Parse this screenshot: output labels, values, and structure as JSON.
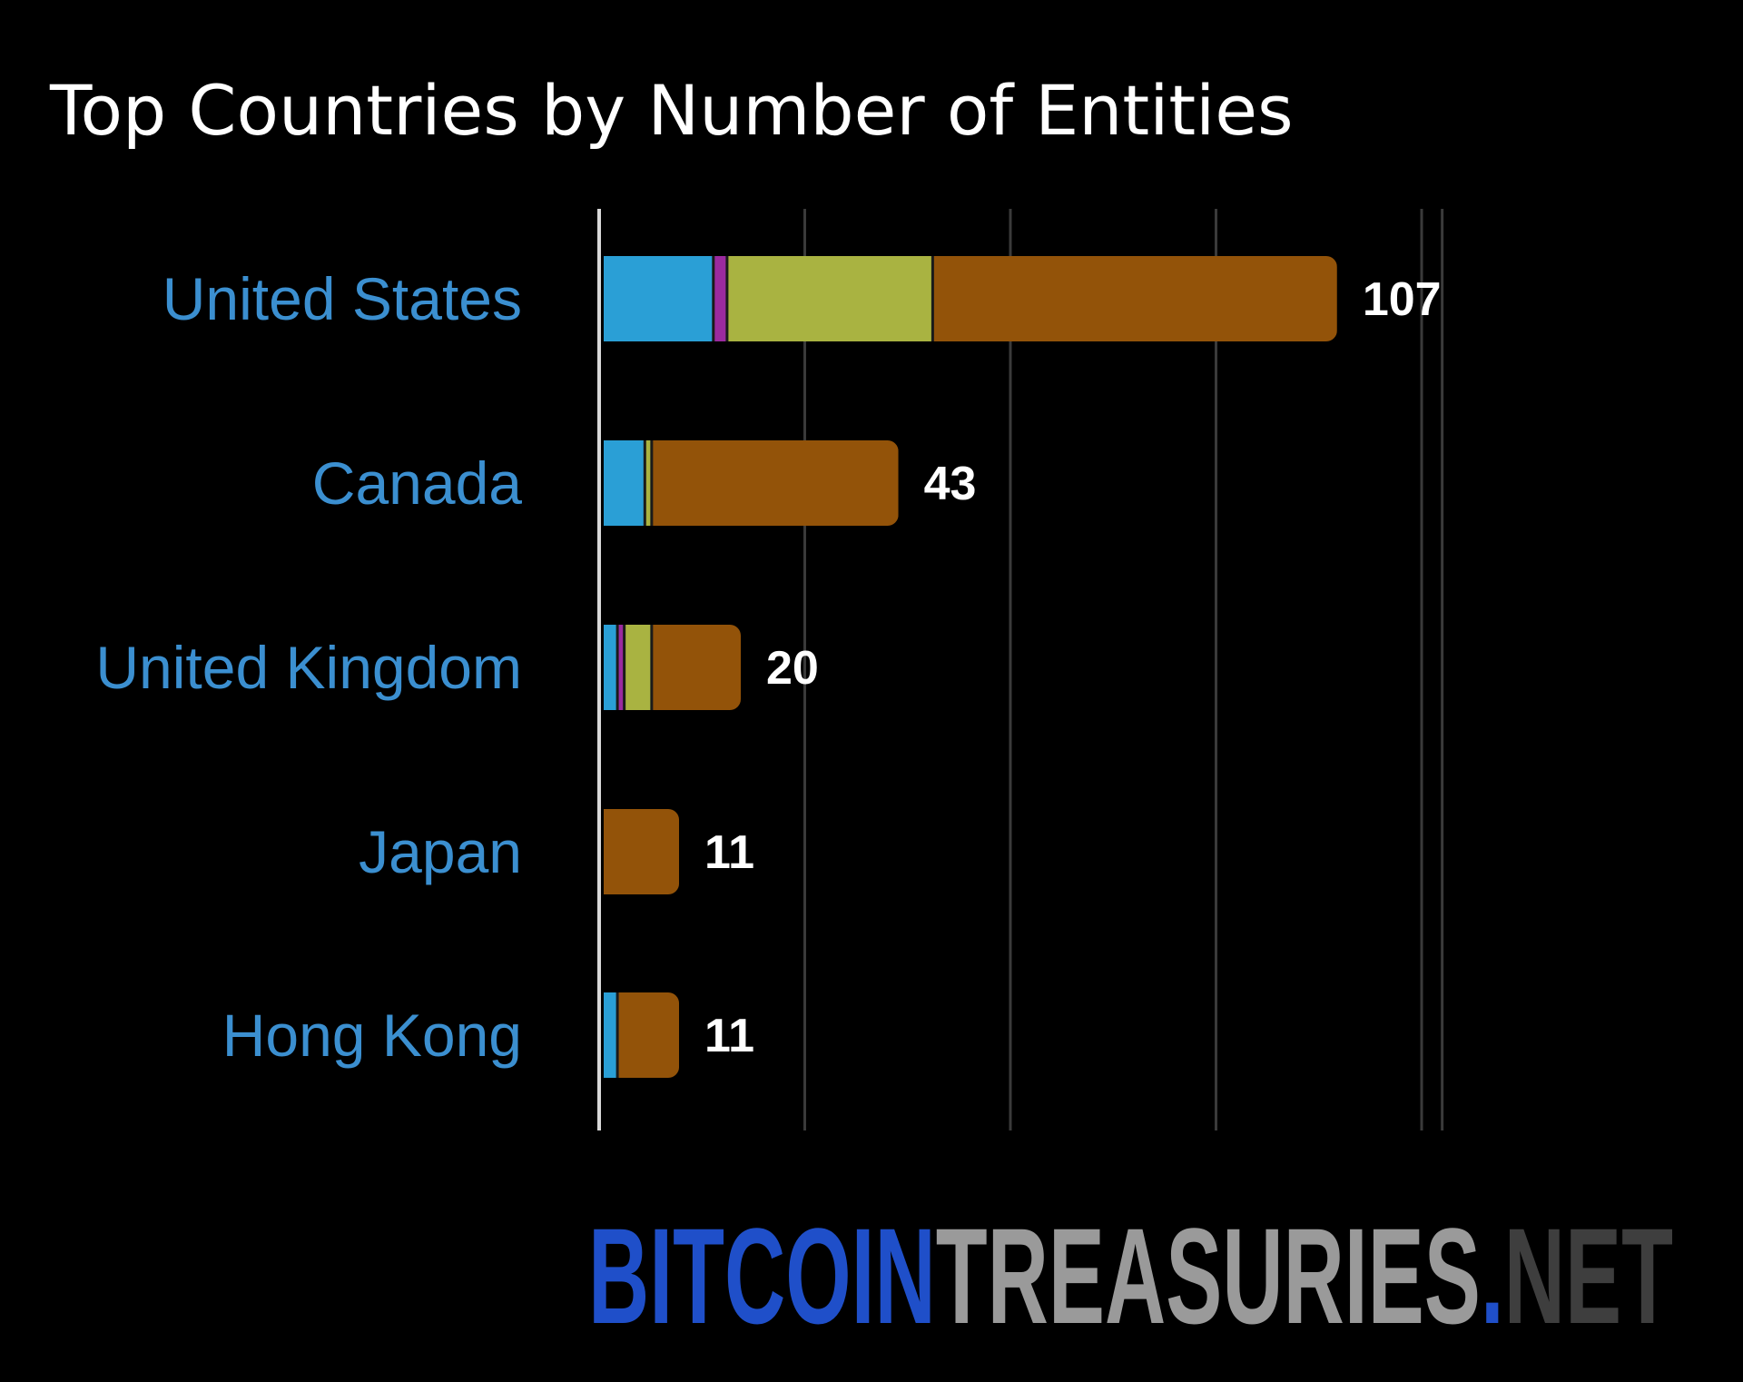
{
  "chart_data": {
    "type": "bar",
    "orientation": "horizontal",
    "stacked": true,
    "title": "Top Countries by Number of Entities",
    "categories": [
      "United States",
      "Canada",
      "United Kingdom",
      "Japan",
      "Hong Kong"
    ],
    "totals": [
      "107",
      "43",
      "20",
      "11",
      "11"
    ],
    "series": [
      {
        "color": "#2a9fd6",
        "values": [
          16,
          6,
          2,
          0,
          2
        ]
      },
      {
        "color": "#9b2a9f",
        "values": [
          2,
          0,
          1,
          0,
          0
        ]
      },
      {
        "color": "#a9b341",
        "values": [
          30,
          1,
          4,
          0,
          0
        ]
      },
      {
        "color": "#935309",
        "values": [
          59,
          36,
          13,
          11,
          9
        ]
      }
    ],
    "xlim": [
      0,
      127
    ],
    "grid": true,
    "legend": "none",
    "colors": {
      "background": "#000000",
      "title": "#ffffff",
      "category_label": "#3b8fd0",
      "value_label": "#ffffff",
      "gridline": "#3a3a3a",
      "axis_line": "#d8d8d8"
    }
  },
  "brand": {
    "part1": "BITCOIN",
    "part2": "TREASURIES",
    "dot": ".",
    "part3": "NET",
    "colors": {
      "part1": "#1f4fc9",
      "part2": "#9a9a9a",
      "dot": "#1f4fc9",
      "part3": "#3e3e3e"
    }
  }
}
